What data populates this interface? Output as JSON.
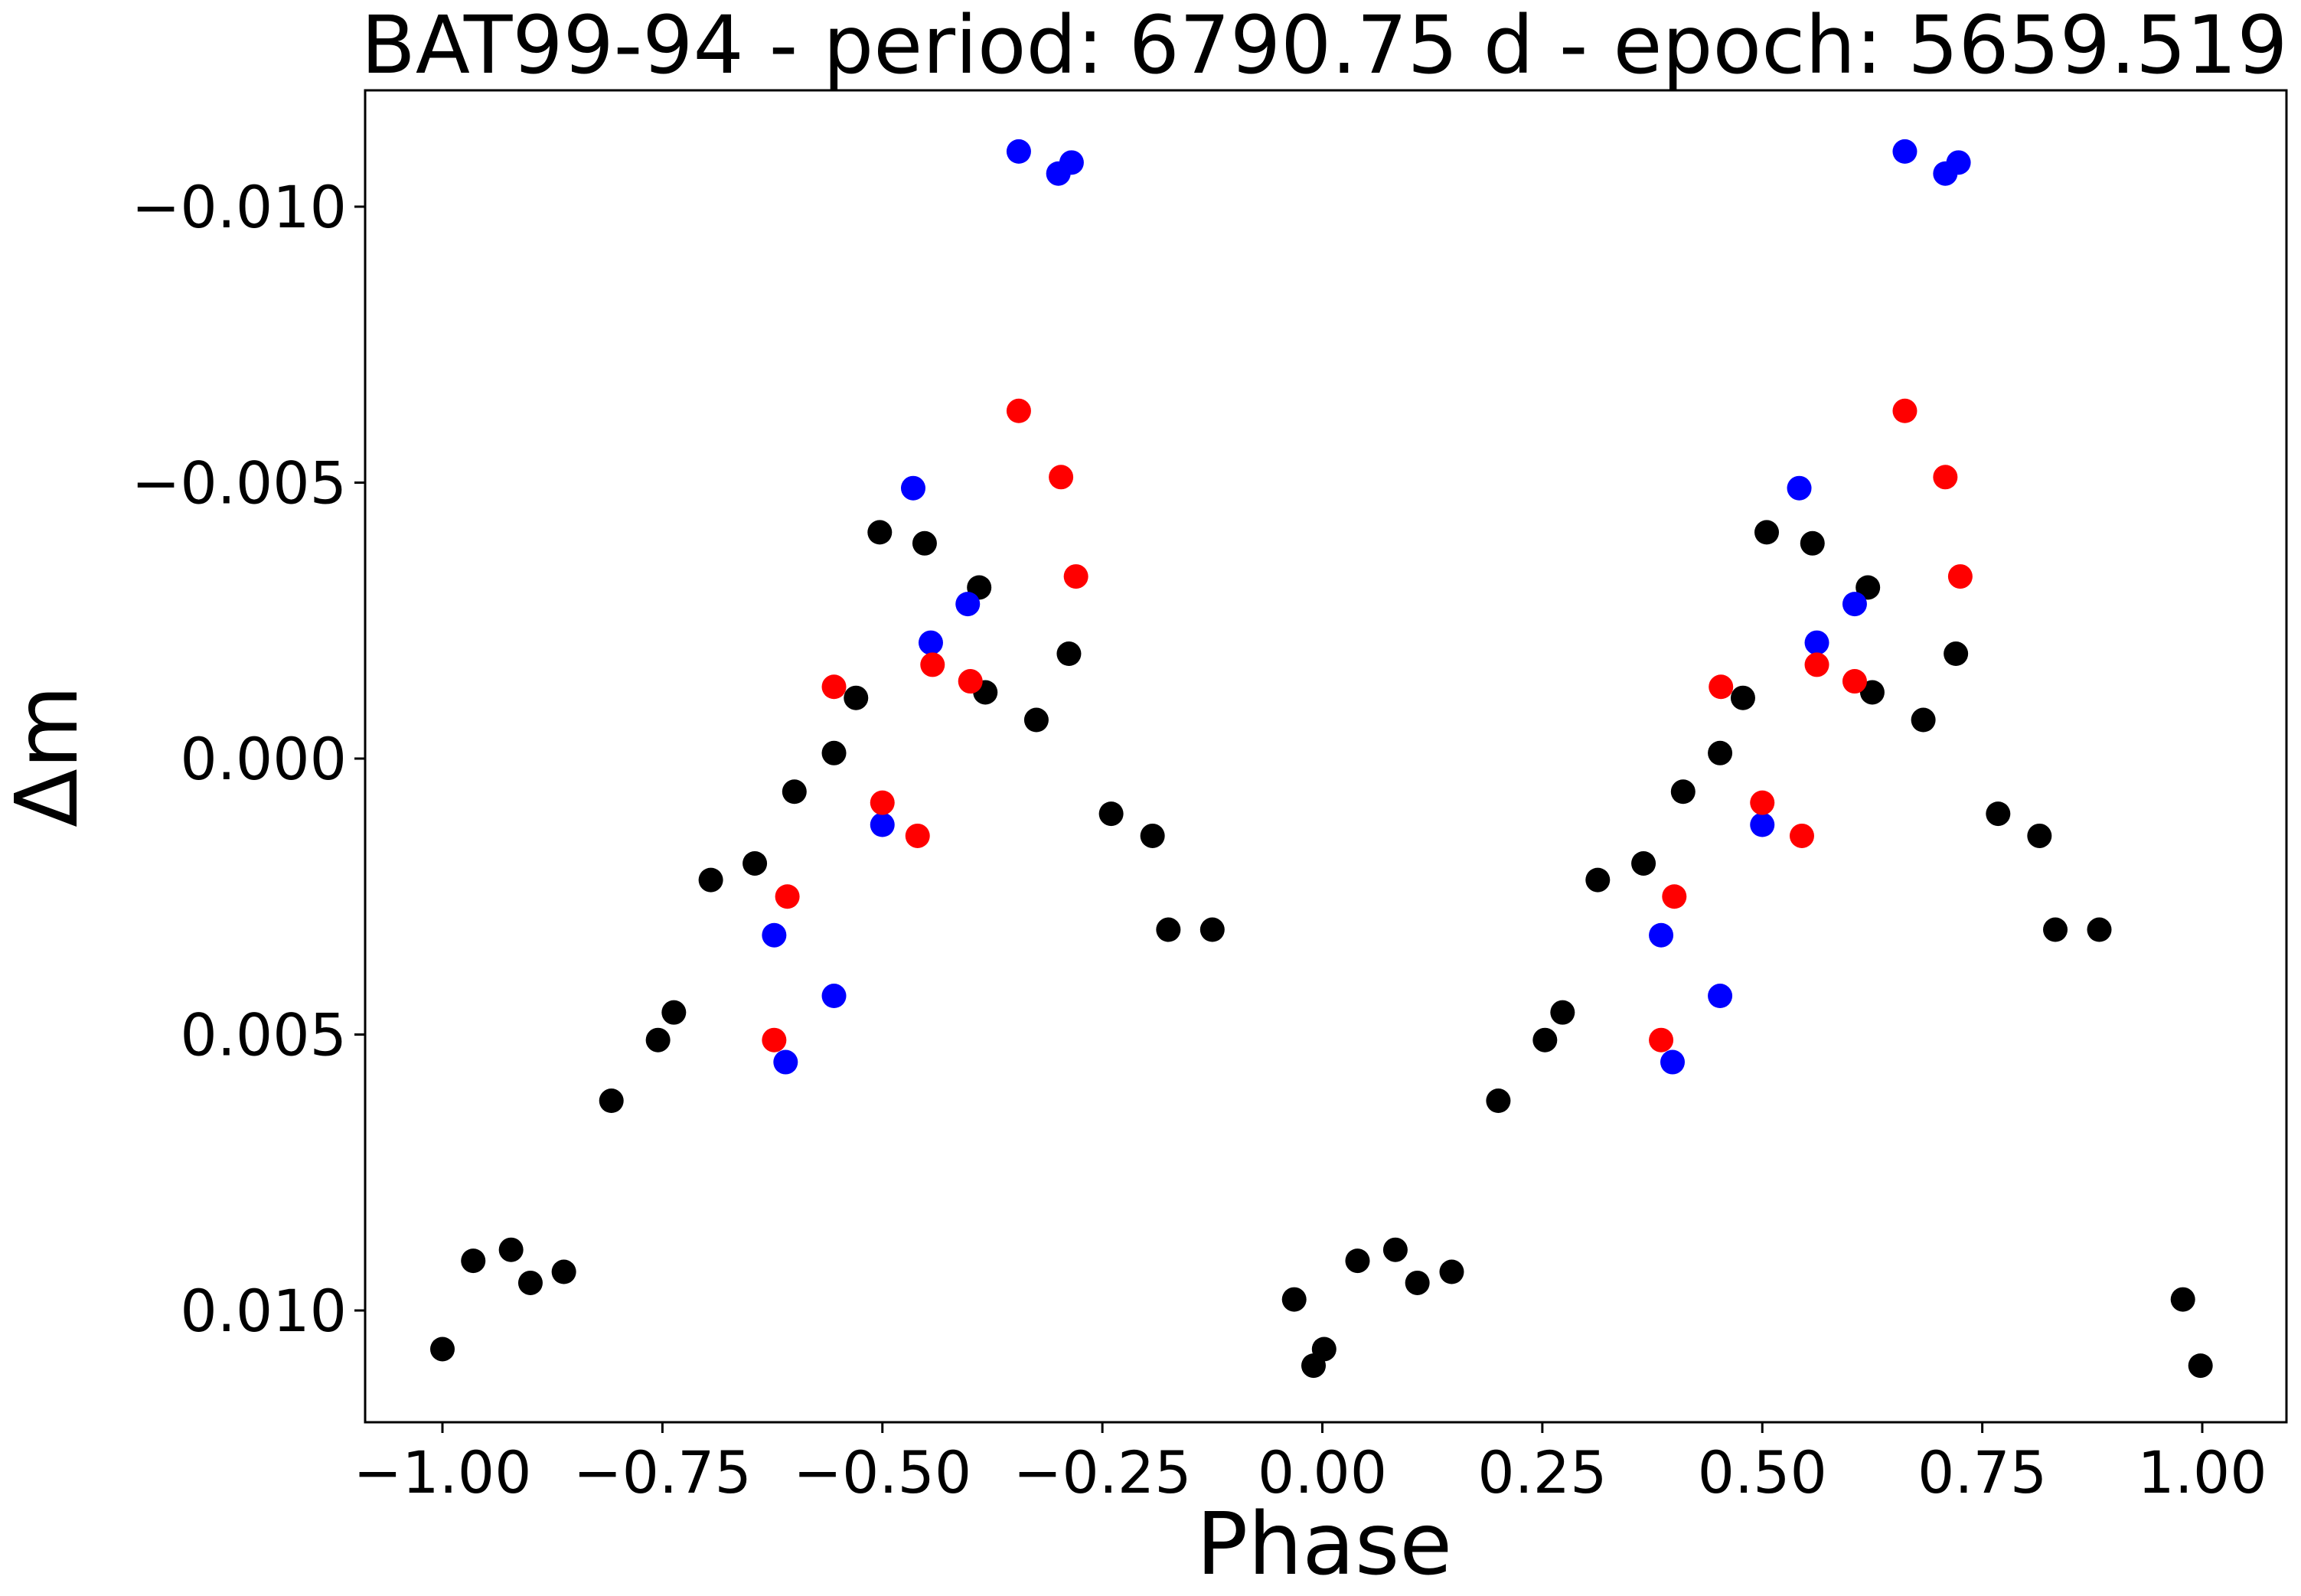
{
  "chart_data": {
    "type": "scatter",
    "title": "BAT99-94 - period: 6790.75 d - epoch: 5659.519",
    "xlabel": "Phase",
    "ylabel": "Δm",
    "xlim": [
      -1.1,
      1.1
    ],
    "ylim": [
      0.012,
      -0.012
    ],
    "y_inverted": true,
    "grid": false,
    "x_ticks": [
      -1.0,
      -0.75,
      -0.5,
      -0.25,
      0.0,
      0.25,
      0.5,
      0.75,
      1.0
    ],
    "x_tick_labels": [
      "−1.00",
      "−0.75",
      "−0.50",
      "−0.25",
      "0.00",
      "0.25",
      "0.50",
      "0.75",
      "1.00"
    ],
    "y_ticks": [
      -0.01,
      -0.005,
      0.0,
      0.005,
      0.01
    ],
    "y_tick_labels": [
      "−0.010",
      "−0.005",
      "0.000",
      "0.005",
      "0.010"
    ],
    "series": [
      {
        "color": "#000000",
        "points": [
          [
            -1.0,
            0.0107
          ],
          [
            -0.965,
            0.0091
          ],
          [
            -0.922,
            0.0089
          ],
          [
            -0.9,
            0.0095
          ],
          [
            -0.862,
            0.0093
          ],
          [
            -0.808,
            0.0062
          ],
          [
            -0.755,
            0.0051
          ],
          [
            -0.737,
            0.0046
          ],
          [
            -0.695,
            0.0022
          ],
          [
            -0.645,
            0.0019
          ],
          [
            -0.6,
            0.0006
          ],
          [
            -0.555,
            -0.0001
          ],
          [
            -0.53,
            -0.0011
          ],
          [
            -0.503,
            -0.0041
          ],
          [
            -0.452,
            -0.0039
          ],
          [
            -0.383,
            -0.0012
          ],
          [
            -0.39,
            -0.0031
          ],
          [
            -0.325,
            -0.0007
          ],
          [
            -0.288,
            -0.0019
          ],
          [
            -0.24,
            0.001
          ],
          [
            -0.193,
            0.0014
          ],
          [
            -0.175,
            0.0031
          ],
          [
            -0.125,
            0.0031
          ],
          [
            -0.032,
            0.0098
          ],
          [
            -0.01,
            0.011
          ],
          [
            0.002,
            0.0107
          ],
          [
            0.04,
            0.0091
          ],
          [
            0.083,
            0.0089
          ],
          [
            0.108,
            0.0095
          ],
          [
            0.147,
            0.0093
          ],
          [
            0.2,
            0.0062
          ],
          [
            0.253,
            0.0051
          ],
          [
            0.273,
            0.0046
          ],
          [
            0.313,
            0.0022
          ],
          [
            0.365,
            0.0019
          ],
          [
            0.41,
            0.0006
          ],
          [
            0.452,
            -0.0001
          ],
          [
            0.478,
            -0.0011
          ],
          [
            0.505,
            -0.0041
          ],
          [
            0.557,
            -0.0039
          ],
          [
            0.625,
            -0.0012
          ],
          [
            0.62,
            -0.0031
          ],
          [
            0.683,
            -0.0007
          ],
          [
            0.72,
            -0.0019
          ],
          [
            0.768,
            0.001
          ],
          [
            0.815,
            0.0014
          ],
          [
            0.833,
            0.0031
          ],
          [
            0.883,
            0.0031
          ],
          [
            0.978,
            0.0098
          ],
          [
            0.998,
            0.011
          ]
        ]
      },
      {
        "color": "#0000ff",
        "points": [
          [
            -0.623,
            0.0032
          ],
          [
            -0.61,
            0.0055
          ],
          [
            -0.555,
            0.0043
          ],
          [
            -0.5,
            0.0012
          ],
          [
            -0.465,
            -0.0049
          ],
          [
            -0.445,
            -0.0021
          ],
          [
            -0.403,
            -0.0028
          ],
          [
            -0.345,
            -0.011
          ],
          [
            -0.3,
            -0.0106
          ],
          [
            -0.285,
            -0.0108
          ],
          [
            0.385,
            0.0032
          ],
          [
            0.398,
            0.0055
          ],
          [
            0.452,
            0.0043
          ],
          [
            0.5,
            0.0012
          ],
          [
            0.542,
            -0.0049
          ],
          [
            0.562,
            -0.0021
          ],
          [
            0.605,
            -0.0028
          ],
          [
            0.662,
            -0.011
          ],
          [
            0.708,
            -0.0106
          ],
          [
            0.723,
            -0.0108
          ]
        ]
      },
      {
        "color": "#ff0000",
        "points": [
          [
            -0.623,
            0.0051
          ],
          [
            -0.608,
            0.0025
          ],
          [
            -0.555,
            -0.0013
          ],
          [
            -0.5,
            0.0008
          ],
          [
            -0.46,
            0.0014
          ],
          [
            -0.443,
            -0.0017
          ],
          [
            -0.4,
            -0.0014
          ],
          [
            -0.345,
            -0.0063
          ],
          [
            -0.297,
            -0.0051
          ],
          [
            -0.28,
            -0.0033
          ],
          [
            0.385,
            0.0051
          ],
          [
            0.4,
            0.0025
          ],
          [
            0.453,
            -0.0013
          ],
          [
            0.5,
            0.0008
          ],
          [
            0.545,
            0.0014
          ],
          [
            0.562,
            -0.0017
          ],
          [
            0.605,
            -0.0014
          ],
          [
            0.662,
            -0.0063
          ],
          [
            0.708,
            -0.0051
          ],
          [
            0.725,
            -0.0033
          ]
        ]
      }
    ]
  }
}
